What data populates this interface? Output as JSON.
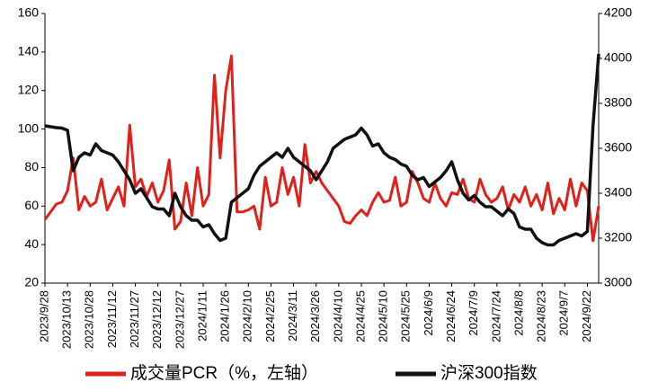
{
  "chart_data": {
    "type": "line",
    "categories": [
      "2023/9/28",
      null,
      null,
      null,
      "2023/10/13",
      null,
      null,
      null,
      "2023/10/28",
      null,
      null,
      null,
      "2023/11/12",
      null,
      null,
      null,
      "2023/11/27",
      null,
      null,
      null,
      "2023/12/12",
      null,
      null,
      null,
      "2023/12/27",
      null,
      null,
      null,
      "2024/1/11",
      null,
      null,
      null,
      "2024/1/26",
      null,
      null,
      null,
      "2024/2/10",
      null,
      null,
      null,
      "2024/2/25",
      null,
      null,
      null,
      "2024/3/11",
      null,
      null,
      null,
      "2024/3/26",
      null,
      null,
      null,
      "2024/4/10",
      null,
      null,
      null,
      "2024/4/25",
      null,
      null,
      null,
      "2024/5/10",
      null,
      null,
      null,
      "2024/5/25",
      null,
      null,
      null,
      "2024/6/9",
      null,
      null,
      null,
      "2024/6/24",
      null,
      null,
      null,
      "2024/7/9",
      null,
      null,
      null,
      "2024/7/24",
      null,
      null,
      null,
      "2024/8/8",
      null,
      null,
      null,
      "2024/8/23",
      null,
      null,
      null,
      "2024/9/7",
      null,
      null,
      null,
      "2024/9/22",
      null,
      null
    ],
    "series": [
      {
        "name": "成交量PCR（%，左轴）",
        "color": "#e0201b",
        "values": [
          53,
          57,
          61,
          62,
          68,
          85,
          58,
          65,
          60,
          62,
          74,
          58,
          64,
          70,
          60,
          102,
          70,
          74,
          65,
          72,
          62,
          68,
          84,
          48,
          52,
          72,
          55,
          80,
          60,
          66,
          128,
          85,
          120,
          138,
          57,
          57,
          58,
          60,
          48,
          75,
          60,
          62,
          80,
          66,
          75,
          60,
          92,
          72,
          78,
          72,
          68,
          64,
          60,
          52,
          51,
          55,
          58,
          55,
          62,
          67,
          62,
          63,
          75,
          60,
          62,
          78,
          72,
          64,
          62,
          72,
          64,
          60,
          67,
          66,
          74,
          64,
          62,
          74,
          66,
          62,
          64,
          70,
          58,
          66,
          62,
          70,
          60,
          66,
          58,
          72,
          56,
          64,
          58,
          74,
          60,
          72,
          68,
          42,
          60
        ]
      },
      {
        "name": "沪深300指数",
        "color": "#111111",
        "axis": "y2",
        "values": [
          3700,
          3696,
          3692,
          3690,
          3680,
          3500,
          3560,
          3580,
          3570,
          3620,
          3590,
          3580,
          3570,
          3540,
          3500,
          3460,
          3400,
          3420,
          3380,
          3340,
          3330,
          3330,
          3300,
          3400,
          3340,
          3300,
          3280,
          3280,
          3250,
          3260,
          3220,
          3190,
          3200,
          3360,
          3380,
          3400,
          3420,
          3480,
          3520,
          3540,
          3560,
          3580,
          3560,
          3600,
          3560,
          3540,
          3520,
          3500,
          3460,
          3500,
          3540,
          3600,
          3620,
          3640,
          3650,
          3660,
          3690,
          3660,
          3610,
          3620,
          3580,
          3560,
          3550,
          3530,
          3520,
          3480,
          3460,
          3470,
          3430,
          3450,
          3470,
          3500,
          3540,
          3460,
          3400,
          3370,
          3390,
          3360,
          3340,
          3340,
          3320,
          3300,
          3330,
          3310,
          3250,
          3240,
          3240,
          3200,
          3180,
          3170,
          3170,
          3190,
          3200,
          3210,
          3220,
          3210,
          3230,
          3700,
          4020
        ]
      }
    ],
    "ylim": [
      20,
      160
    ],
    "yticks": [
      20,
      40,
      60,
      80,
      100,
      120,
      140,
      160
    ],
    "y2lim": [
      3000,
      4200
    ],
    "y2ticks": [
      3000,
      3200,
      3400,
      3600,
      3800,
      4000,
      4200
    ],
    "legend": "bottom"
  }
}
